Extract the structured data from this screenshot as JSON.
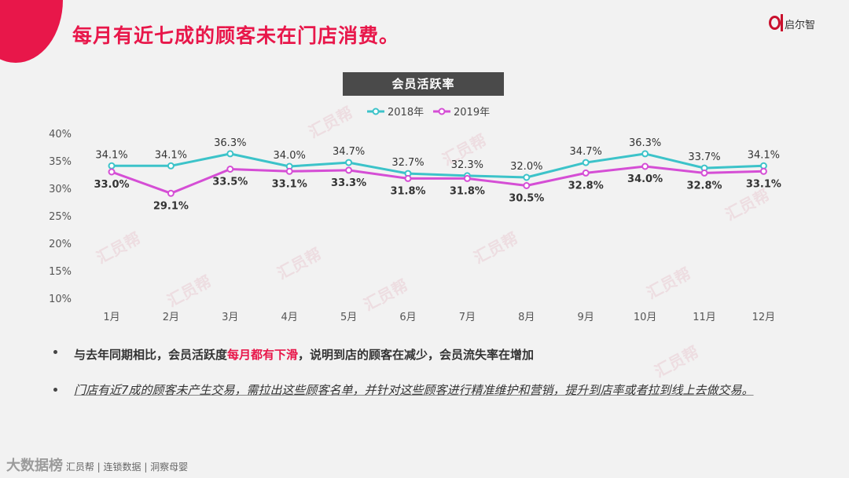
{
  "title": "每月有近七成的顾客未在门店消费。",
  "brand": {
    "text": "启尔智"
  },
  "chart_header": "会员活跃率",
  "watermark_text": "汇员帮",
  "chart_data": {
    "type": "line",
    "categories": [
      "1月",
      "2月",
      "3月",
      "4月",
      "5月",
      "6月",
      "7月",
      "8月",
      "9月",
      "10月",
      "11月",
      "12月"
    ],
    "series": [
      {
        "name": "2018年",
        "color": "#3cc3c9",
        "values": [
          34.1,
          34.1,
          36.3,
          34.0,
          34.7,
          32.7,
          32.3,
          32.0,
          34.7,
          36.3,
          33.7,
          34.1
        ],
        "labels": [
          "34.1%",
          "34.1%",
          "36.3%",
          "34.0%",
          "34.7%",
          "32.7%",
          "32.3%",
          "32.0%",
          "34.7%",
          "36.3%",
          "33.7%",
          "34.1%"
        ]
      },
      {
        "name": "2019年",
        "color": "#d54ed5",
        "values": [
          33.0,
          29.1,
          33.5,
          33.1,
          33.3,
          31.8,
          31.8,
          30.5,
          32.8,
          34.0,
          32.8,
          33.1
        ],
        "labels": [
          "33.0%",
          "29.1%",
          "33.5%",
          "33.1%",
          "33.3%",
          "31.8%",
          "31.8%",
          "30.5%",
          "32.8%",
          "34.0%",
          "32.8%",
          "33.1%"
        ]
      }
    ],
    "yticks": [
      "40%",
      "35%",
      "30%",
      "25%",
      "20%",
      "15%",
      "10%"
    ],
    "ylim": [
      10,
      40
    ],
    "legend_position": "top-center",
    "grid": false
  },
  "bullets": {
    "b1_pre": "与去年同期相比，会员活跃度",
    "b1_highlight": "每月都有下滑",
    "b1_post": "，说明到店的顾客在减少，会员流失率在增加",
    "b2": "门店有近7成的顾客未产生交易，需拉出这些顾客名单，并针对这些顾客进行精准维护和营销，提升到店率或者拉到线上去做交易。"
  },
  "footer": {
    "big": "大数据榜",
    "small": "汇员帮 | 连锁数据 | 洞察母婴"
  }
}
